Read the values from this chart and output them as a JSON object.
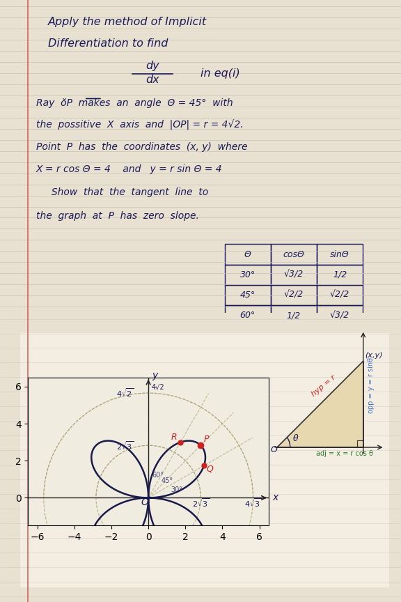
{
  "bg_top": "#e8e0d0",
  "bg_bottom": "#e8dfd0",
  "line_color": "#c8c0b0",
  "text_color": "#1a1a5a",
  "red_color": "#cc2222",
  "green_color": "#2a7a2a",
  "orange_color": "#cc8800",
  "blue_curve_color": "#1a1a4a",
  "dashed_color": "#888855",
  "title_lines": [
    "Apply the method of Implicit",
    "Differentiation to find"
  ],
  "dy_dx_line": "dy",
  "dx_line": "dx",
  "in_eq": "in eq(i)",
  "paragraph": [
    "Ray  ŏP  makes  an  angle  Θ = 45°  with",
    "the  possitive  X  axis  and  |OP| = r = 4√2.",
    "Point  P  has  the  coordinates  (x, y)  where",
    "X = r cos Θ = 4    and   y = r sin Θ = 4",
    "     Show  that  the  tangent  line  to",
    "the  graph  at  P  has  zero  slope."
  ],
  "table_headers": [
    "Θ",
    "cos\nΘ",
    "sin\nΘ"
  ],
  "table_rows": [
    [
      "30°",
      "√3/2",
      "1/2"
    ],
    [
      "45°",
      "√2/2",
      "√2/2"
    ],
    [
      "60°",
      "1/2",
      "√3/2"
    ]
  ]
}
